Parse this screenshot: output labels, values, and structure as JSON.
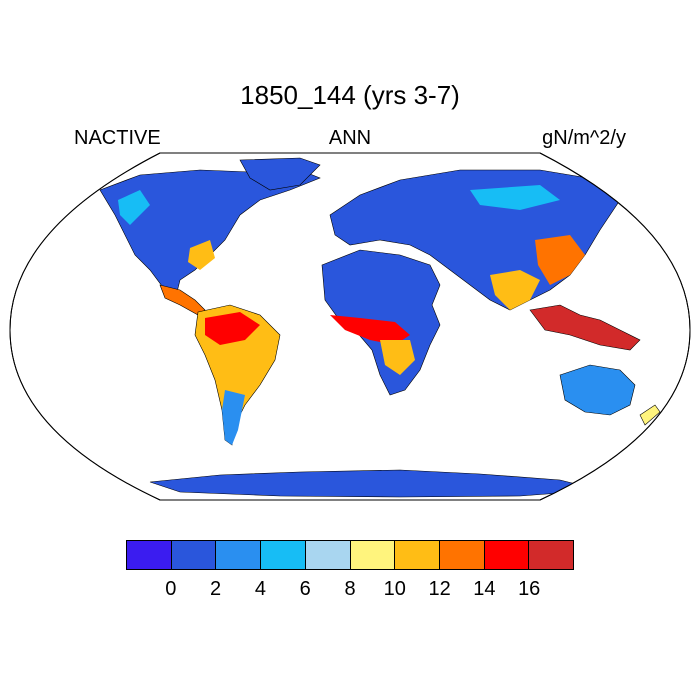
{
  "title": "1850_144 (yrs 3-7)",
  "left_label": "NACTIVE",
  "center_label": "ANN",
  "right_label": "gN/m^2/y",
  "colorbar": {
    "colors": [
      "#3b1cf0",
      "#2a56dc",
      "#2a8ff0",
      "#17bdf5",
      "#a9d6f0",
      "#fff47d",
      "#ffbd15",
      "#ff7300",
      "#ff0000",
      "#d22a2a"
    ],
    "labels": [
      "0",
      "2",
      "4",
      "6",
      "8",
      "10",
      "12",
      "14",
      "16"
    ]
  },
  "map": {
    "projection": "robinson",
    "land_colors": {
      "low": "#2a56dc",
      "mid": "#2a8ff0",
      "high_mid": "#17bdf5",
      "warm": "#ffbd15",
      "hot": "#ff7300",
      "very_hot": "#ff0000",
      "max": "#d22a2a"
    }
  }
}
